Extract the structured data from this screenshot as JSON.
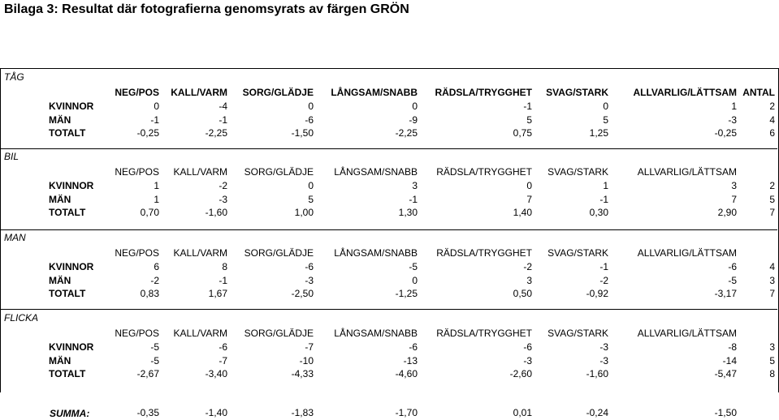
{
  "title": "Bilaga 3: Resultat där fotografierna genomsyrats av färgen GRÖN",
  "columns": [
    "NEG/POS",
    "KALL/VARM",
    "SORG/GLÄDJE",
    "LÅNGSAM/SNABB",
    "RÄDSLA/TRYGGHET",
    "SVAG/STARK",
    "ALLVARLIG/LÄTTSAM",
    "ANTAL"
  ],
  "sections": [
    {
      "name": "TÅG",
      "header_bold": true,
      "show_antal_header": true,
      "rows": [
        {
          "label": "KVINNOR",
          "values": [
            "0",
            "-4",
            "0",
            "0",
            "-1",
            "0",
            "1",
            "2"
          ]
        },
        {
          "label": "MÄN",
          "values": [
            "-1",
            "-1",
            "-6",
            "-9",
            "5",
            "5",
            "-3",
            "4"
          ]
        },
        {
          "label": "TOTALT",
          "values": [
            "-0,25",
            "-2,25",
            "-1,50",
            "-2,25",
            "0,75",
            "1,25",
            "-0,25",
            "6"
          ]
        }
      ]
    },
    {
      "name": "BIL",
      "header_bold": false,
      "show_antal_header": false,
      "rows": [
        {
          "label": "KVINNOR",
          "values": [
            "1",
            "-2",
            "0",
            "3",
            "0",
            "1",
            "3",
            "2"
          ]
        },
        {
          "label": "MÄN",
          "values": [
            "1",
            "-3",
            "5",
            "-1",
            "7",
            "-1",
            "7",
            "5"
          ]
        },
        {
          "label": "TOTALT",
          "values": [
            "0,70",
            "-1,60",
            "1,00",
            "1,30",
            "1,40",
            "0,30",
            "2,90",
            "7"
          ]
        }
      ]
    },
    {
      "name": "MAN",
      "header_bold": false,
      "show_antal_header": false,
      "rows": [
        {
          "label": "KVINNOR",
          "values": [
            "6",
            "8",
            "-6",
            "-5",
            "-2",
            "-1",
            "-6",
            "4"
          ]
        },
        {
          "label": "MÄN",
          "values": [
            "-2",
            "-1",
            "-3",
            "0",
            "3",
            "-2",
            "-5",
            "3"
          ]
        },
        {
          "label": "TOTALT",
          "values": [
            "0,83",
            "1,67",
            "-2,50",
            "-1,25",
            "0,50",
            "-0,92",
            "-3,17",
            "7"
          ]
        }
      ]
    },
    {
      "name": "FLICKA",
      "header_bold": false,
      "show_antal_header": false,
      "rows": [
        {
          "label": "KVINNOR",
          "values": [
            "-5",
            "-6",
            "-7",
            "-6",
            "-6",
            "-3",
            "-8",
            "3"
          ]
        },
        {
          "label": "MÄN",
          "values": [
            "-5",
            "-7",
            "-10",
            "-13",
            "-3",
            "-3",
            "-14",
            "5"
          ]
        },
        {
          "label": "TOTALT",
          "values": [
            "-2,67",
            "-3,40",
            "-4,33",
            "-4,60",
            "-2,60",
            "-1,60",
            "-5,47",
            "8"
          ]
        }
      ]
    }
  ],
  "summa": {
    "label": "SUMMA:",
    "values": [
      "-0,35",
      "-1,40",
      "-1,83",
      "-1,70",
      "0,01",
      "-0,24",
      "-1,50"
    ]
  }
}
